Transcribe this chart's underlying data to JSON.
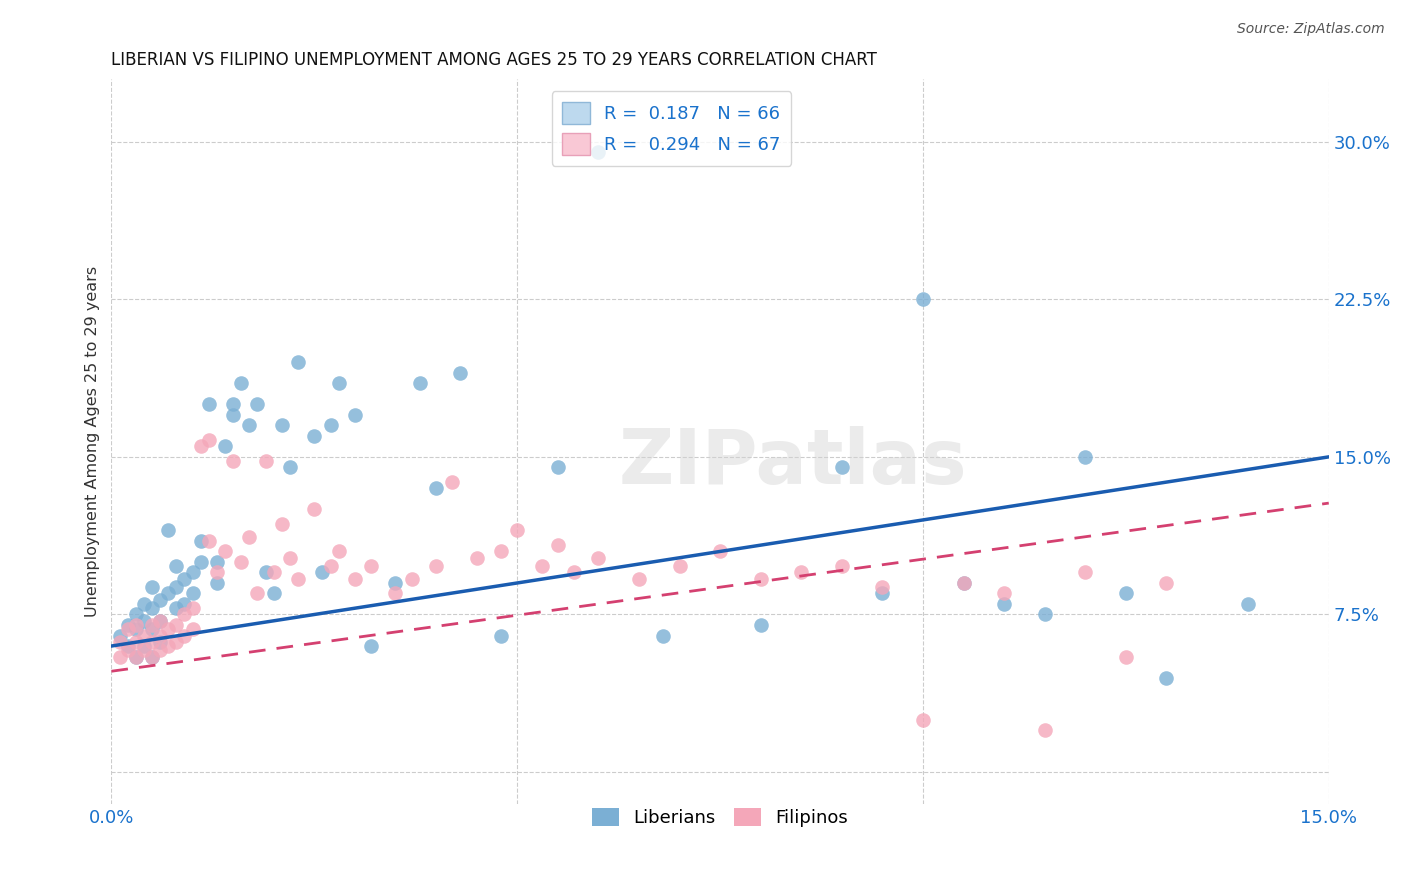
{
  "title": "LIBERIAN VS FILIPINO UNEMPLOYMENT AMONG AGES 25 TO 29 YEARS CORRELATION CHART",
  "source": "Source: ZipAtlas.com",
  "ylabel": "Unemployment Among Ages 25 to 29 years",
  "xlim": [
    0.0,
    0.15
  ],
  "ylim": [
    -0.015,
    0.33
  ],
  "liberian_R": 0.187,
  "liberian_N": 66,
  "filipino_R": 0.294,
  "filipino_N": 67,
  "liberian_color": "#7BAFD4",
  "filipino_color": "#F4A7B9",
  "liberian_line_color": "#1A5CB0",
  "filipino_line_color": "#D44070",
  "watermark": "ZIPatlas",
  "legend_box_color_liberian": "#BDD9EE",
  "legend_box_color_filipino": "#F9C8D5",
  "liberian_x": [
    0.001,
    0.002,
    0.002,
    0.003,
    0.003,
    0.003,
    0.004,
    0.004,
    0.004,
    0.005,
    0.005,
    0.005,
    0.005,
    0.006,
    0.006,
    0.006,
    0.007,
    0.007,
    0.008,
    0.008,
    0.008,
    0.009,
    0.009,
    0.01,
    0.01,
    0.011,
    0.011,
    0.012,
    0.013,
    0.013,
    0.014,
    0.015,
    0.015,
    0.016,
    0.017,
    0.018,
    0.019,
    0.02,
    0.021,
    0.022,
    0.023,
    0.025,
    0.026,
    0.027,
    0.028,
    0.03,
    0.032,
    0.035,
    0.038,
    0.04,
    0.043,
    0.048,
    0.055,
    0.06,
    0.068,
    0.08,
    0.09,
    0.095,
    0.1,
    0.105,
    0.11,
    0.115,
    0.12,
    0.125,
    0.13,
    0.14
  ],
  "liberian_y": [
    0.065,
    0.06,
    0.07,
    0.055,
    0.068,
    0.075,
    0.06,
    0.072,
    0.08,
    0.055,
    0.068,
    0.078,
    0.088,
    0.062,
    0.072,
    0.082,
    0.115,
    0.085,
    0.078,
    0.088,
    0.098,
    0.08,
    0.092,
    0.085,
    0.095,
    0.1,
    0.11,
    0.175,
    0.09,
    0.1,
    0.155,
    0.17,
    0.175,
    0.185,
    0.165,
    0.175,
    0.095,
    0.085,
    0.165,
    0.145,
    0.195,
    0.16,
    0.095,
    0.165,
    0.185,
    0.17,
    0.06,
    0.09,
    0.185,
    0.135,
    0.19,
    0.065,
    0.145,
    0.295,
    0.065,
    0.07,
    0.145,
    0.085,
    0.225,
    0.09,
    0.08,
    0.075,
    0.15,
    0.085,
    0.045,
    0.08
  ],
  "filipino_x": [
    0.001,
    0.001,
    0.002,
    0.002,
    0.003,
    0.003,
    0.003,
    0.004,
    0.004,
    0.005,
    0.005,
    0.005,
    0.006,
    0.006,
    0.006,
    0.007,
    0.007,
    0.008,
    0.008,
    0.009,
    0.009,
    0.01,
    0.01,
    0.011,
    0.012,
    0.012,
    0.013,
    0.014,
    0.015,
    0.016,
    0.017,
    0.018,
    0.019,
    0.02,
    0.021,
    0.022,
    0.023,
    0.025,
    0.027,
    0.028,
    0.03,
    0.032,
    0.035,
    0.037,
    0.04,
    0.042,
    0.045,
    0.048,
    0.05,
    0.053,
    0.055,
    0.057,
    0.06,
    0.065,
    0.07,
    0.075,
    0.08,
    0.085,
    0.09,
    0.095,
    0.1,
    0.105,
    0.11,
    0.115,
    0.12,
    0.125,
    0.13
  ],
  "filipino_y": [
    0.055,
    0.062,
    0.058,
    0.068,
    0.055,
    0.062,
    0.07,
    0.058,
    0.065,
    0.055,
    0.062,
    0.07,
    0.058,
    0.065,
    0.072,
    0.06,
    0.068,
    0.062,
    0.07,
    0.065,
    0.075,
    0.068,
    0.078,
    0.155,
    0.158,
    0.11,
    0.095,
    0.105,
    0.148,
    0.1,
    0.112,
    0.085,
    0.148,
    0.095,
    0.118,
    0.102,
    0.092,
    0.125,
    0.098,
    0.105,
    0.092,
    0.098,
    0.085,
    0.092,
    0.098,
    0.138,
    0.102,
    0.105,
    0.115,
    0.098,
    0.108,
    0.095,
    0.102,
    0.092,
    0.098,
    0.105,
    0.092,
    0.095,
    0.098,
    0.088,
    0.025,
    0.09,
    0.085,
    0.02,
    0.095,
    0.055,
    0.09
  ]
}
